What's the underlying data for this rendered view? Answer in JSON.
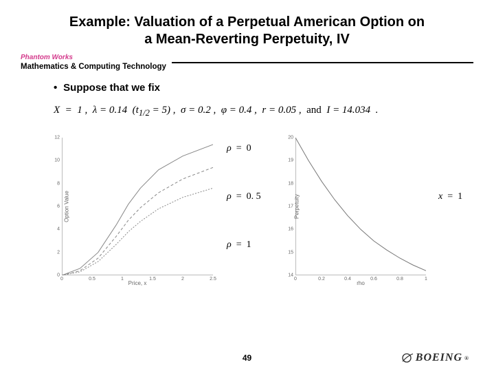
{
  "title": {
    "line1": "Example:  Valuation of a Perpetual American Option on",
    "line2": "a Mean-Reverting Perpetuity, IV"
  },
  "subheader": {
    "phantom_works": "Phantom Works",
    "phantom_works_color": "#d43a8c",
    "department": "Mathematics & Computing Technology"
  },
  "bullet": "Suppose that we fix",
  "equation": {
    "text": "X  =  1 ,  λ = 0.14  (t₁⸝₂ = 5) ,  σ = 0.2 ,  φ = 0.4 ,  r = 0.05 ,  and  I = 14.034  ."
  },
  "left_chart": {
    "type": "line",
    "title": "",
    "xlabel": "Price, x",
    "ylabel": "Option Value",
    "xlim": [
      0,
      2.5
    ],
    "ylim": [
      0,
      12
    ],
    "xticks": [
      0,
      0.5,
      1,
      1.5,
      2,
      2.5
    ],
    "yticks": [
      0,
      2,
      4,
      6,
      8,
      10,
      12
    ],
    "axis_color": "#bbbbbb",
    "tick_fontsize": 7,
    "label_fontsize": 8,
    "background_color": "#ffffff",
    "series": [
      {
        "name": "rho=0",
        "color": "#888888",
        "line_width": 1,
        "dash": "none",
        "points": [
          [
            0,
            0
          ],
          [
            0.3,
            0.6
          ],
          [
            0.6,
            2.0
          ],
          [
            0.9,
            4.4
          ],
          [
            1.1,
            6.2
          ],
          [
            1.3,
            7.6
          ],
          [
            1.6,
            9.2
          ],
          [
            2.0,
            10.4
          ],
          [
            2.5,
            11.4
          ]
        ]
      },
      {
        "name": "rho=0.5",
        "color": "#888888",
        "line_width": 1,
        "dash": "4 3",
        "points": [
          [
            0,
            0
          ],
          [
            0.3,
            0.4
          ],
          [
            0.6,
            1.5
          ],
          [
            0.9,
            3.4
          ],
          [
            1.1,
            4.8
          ],
          [
            1.3,
            5.9
          ],
          [
            1.6,
            7.2
          ],
          [
            2.0,
            8.4
          ],
          [
            2.5,
            9.4
          ]
        ]
      },
      {
        "name": "rho=1",
        "color": "#888888",
        "line_width": 1,
        "dash": "2 2",
        "points": [
          [
            0,
            0
          ],
          [
            0.3,
            0.3
          ],
          [
            0.6,
            1.2
          ],
          [
            0.9,
            2.7
          ],
          [
            1.1,
            3.8
          ],
          [
            1.3,
            4.7
          ],
          [
            1.6,
            5.8
          ],
          [
            2.0,
            6.8
          ],
          [
            2.5,
            7.6
          ]
        ]
      }
    ],
    "annotations": [
      {
        "label_html": "<span class='ital'>ρ</span>  =  0",
        "pos": "top"
      },
      {
        "label_html": "<span class='ital'>ρ</span>  =  0. 5",
        "pos": "mid"
      },
      {
        "label_html": "<span class='ital'>ρ</span>  =  1",
        "pos": "bot"
      }
    ]
  },
  "right_chart": {
    "type": "line",
    "xlabel": "rho",
    "ylabel": "Perpetuity",
    "xlim": [
      0,
      1
    ],
    "ylim": [
      14,
      20
    ],
    "xticks": [
      0,
      0.2,
      0.4,
      0.6,
      0.8,
      1
    ],
    "yticks": [
      14,
      15,
      16,
      17,
      18,
      19,
      20
    ],
    "axis_color": "#bbbbbb",
    "tick_fontsize": 7,
    "label_fontsize": 8,
    "background_color": "#ffffff",
    "series": [
      {
        "name": "x=1",
        "color": "#777777",
        "line_width": 1,
        "dash": "none",
        "points": [
          [
            0,
            20.0
          ],
          [
            0.1,
            19.0
          ],
          [
            0.2,
            18.1
          ],
          [
            0.3,
            17.3
          ],
          [
            0.4,
            16.6
          ],
          [
            0.5,
            16.0
          ],
          [
            0.6,
            15.5
          ],
          [
            0.7,
            15.1
          ],
          [
            0.8,
            14.75
          ],
          [
            0.9,
            14.45
          ],
          [
            1.0,
            14.2
          ]
        ]
      }
    ],
    "annotation": {
      "label_html": "<span class='ital'>x</span>  =  1"
    }
  },
  "page_number": "49",
  "logo_text": "BOEING"
}
